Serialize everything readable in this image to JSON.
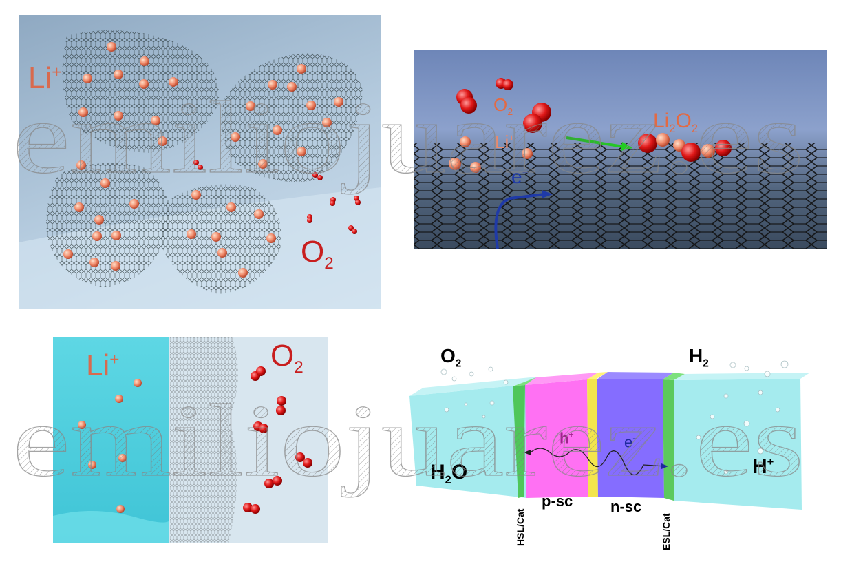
{
  "panel_tl": {
    "li": "Li",
    "li_sup": "+",
    "o2": "O",
    "o2_sub": "2"
  },
  "panel_tr": {
    "o2": "O",
    "o2_sub": "2",
    "li": "Li",
    "li_sup": "+",
    "li2o2_a": "Li",
    "li2o2_a_sub": "2",
    "li2o2_b": "O",
    "li2o2_b_sub": "2",
    "electron": "e",
    "electron_sup": "−"
  },
  "panel_bl": {
    "li": "Li",
    "li_sup": "+",
    "o2": "O",
    "o2_sub": "2"
  },
  "panel_br": {
    "o2": "O",
    "o2_sub": "2",
    "h2": "H",
    "h2_sub": "2",
    "h2o_a": "H",
    "h2o_sub": "2",
    "h2o_b": "O",
    "hplus": "H",
    "hplus_sup": "+",
    "hole": "h",
    "hole_sup": "+",
    "electron": "e",
    "electron_sup": "−",
    "p_sc": "p-sc",
    "n_sc": "n-sc",
    "hsl": "HSL/Cat",
    "esl": "ESL/Cat"
  },
  "watermark": "emiliojuarez.es",
  "colors": {
    "li_label": "#d86a4e",
    "o2_label": "#c81e1e",
    "electron": "#1f2a9e",
    "hole": "#a0228c",
    "p_layer": "#ff4df0",
    "n_layer": "#6a4dff",
    "water": "#8fe6ea",
    "hsl_layer": "#3fbf3f",
    "interface": "#f2e23a"
  }
}
